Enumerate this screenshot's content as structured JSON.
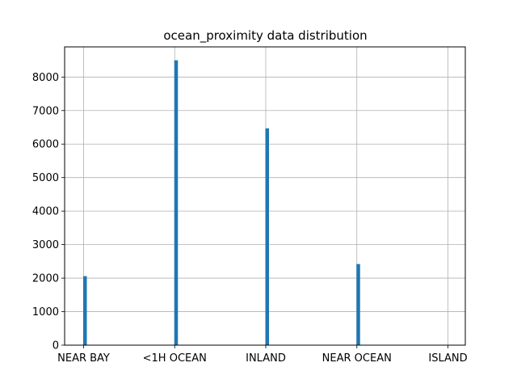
{
  "chart_data": {
    "type": "bar",
    "title": "ocean_proximity data distribution",
    "xlabel": "",
    "ylabel": "",
    "categories": [
      "NEAR BAY",
      "<1H OCEAN",
      "INLAND",
      "NEAR OCEAN",
      "ISLAND"
    ],
    "values": [
      2060,
      8500,
      6470,
      2420,
      5
    ],
    "ylim": [
      0,
      8900
    ],
    "yticks": [
      0,
      1000,
      2000,
      3000,
      4000,
      5000,
      6000,
      7000,
      8000
    ],
    "grid": true,
    "bar_color": "#1f77b4"
  }
}
